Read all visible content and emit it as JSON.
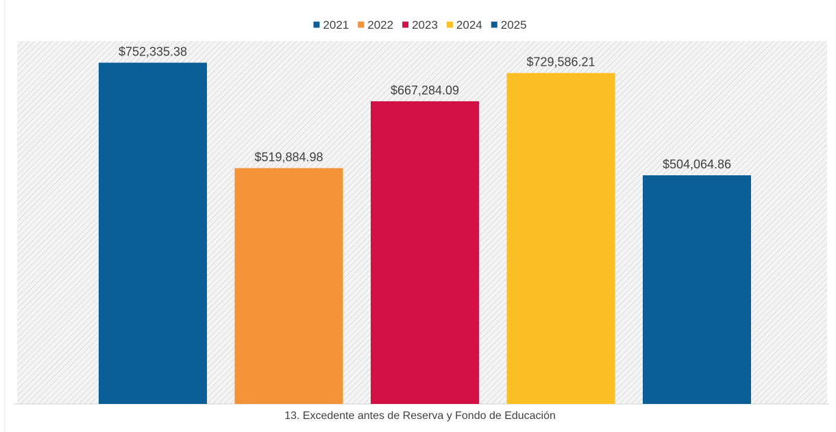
{
  "chart_data": {
    "type": "bar",
    "categories": [
      "13. Excedente antes de Reserva y Fondo de Educación"
    ],
    "xlabel": "13. Excedente antes de Reserva y Fondo de Educación",
    "ylabel": "",
    "ylim": [
      0,
      800000
    ],
    "grid": false,
    "legend_position": "top-center",
    "series": [
      {
        "name": "2021",
        "values": [
          752335.38
        ],
        "label": "$752,335.38",
        "color": "#0A6096"
      },
      {
        "name": "2022",
        "values": [
          519884.98
        ],
        "label": "$519,884.98",
        "color": "#F39236"
      },
      {
        "name": "2023",
        "values": [
          667284.09
        ],
        "label": "$667,284.09",
        "color": "#D21046"
      },
      {
        "name": "2024",
        "values": [
          729586.21
        ],
        "label": "$729,586.21",
        "color": "#FBBF24"
      },
      {
        "name": "2025",
        "values": [
          504064.86
        ],
        "label": "$504,064.86",
        "color": "#0A6096"
      }
    ]
  }
}
